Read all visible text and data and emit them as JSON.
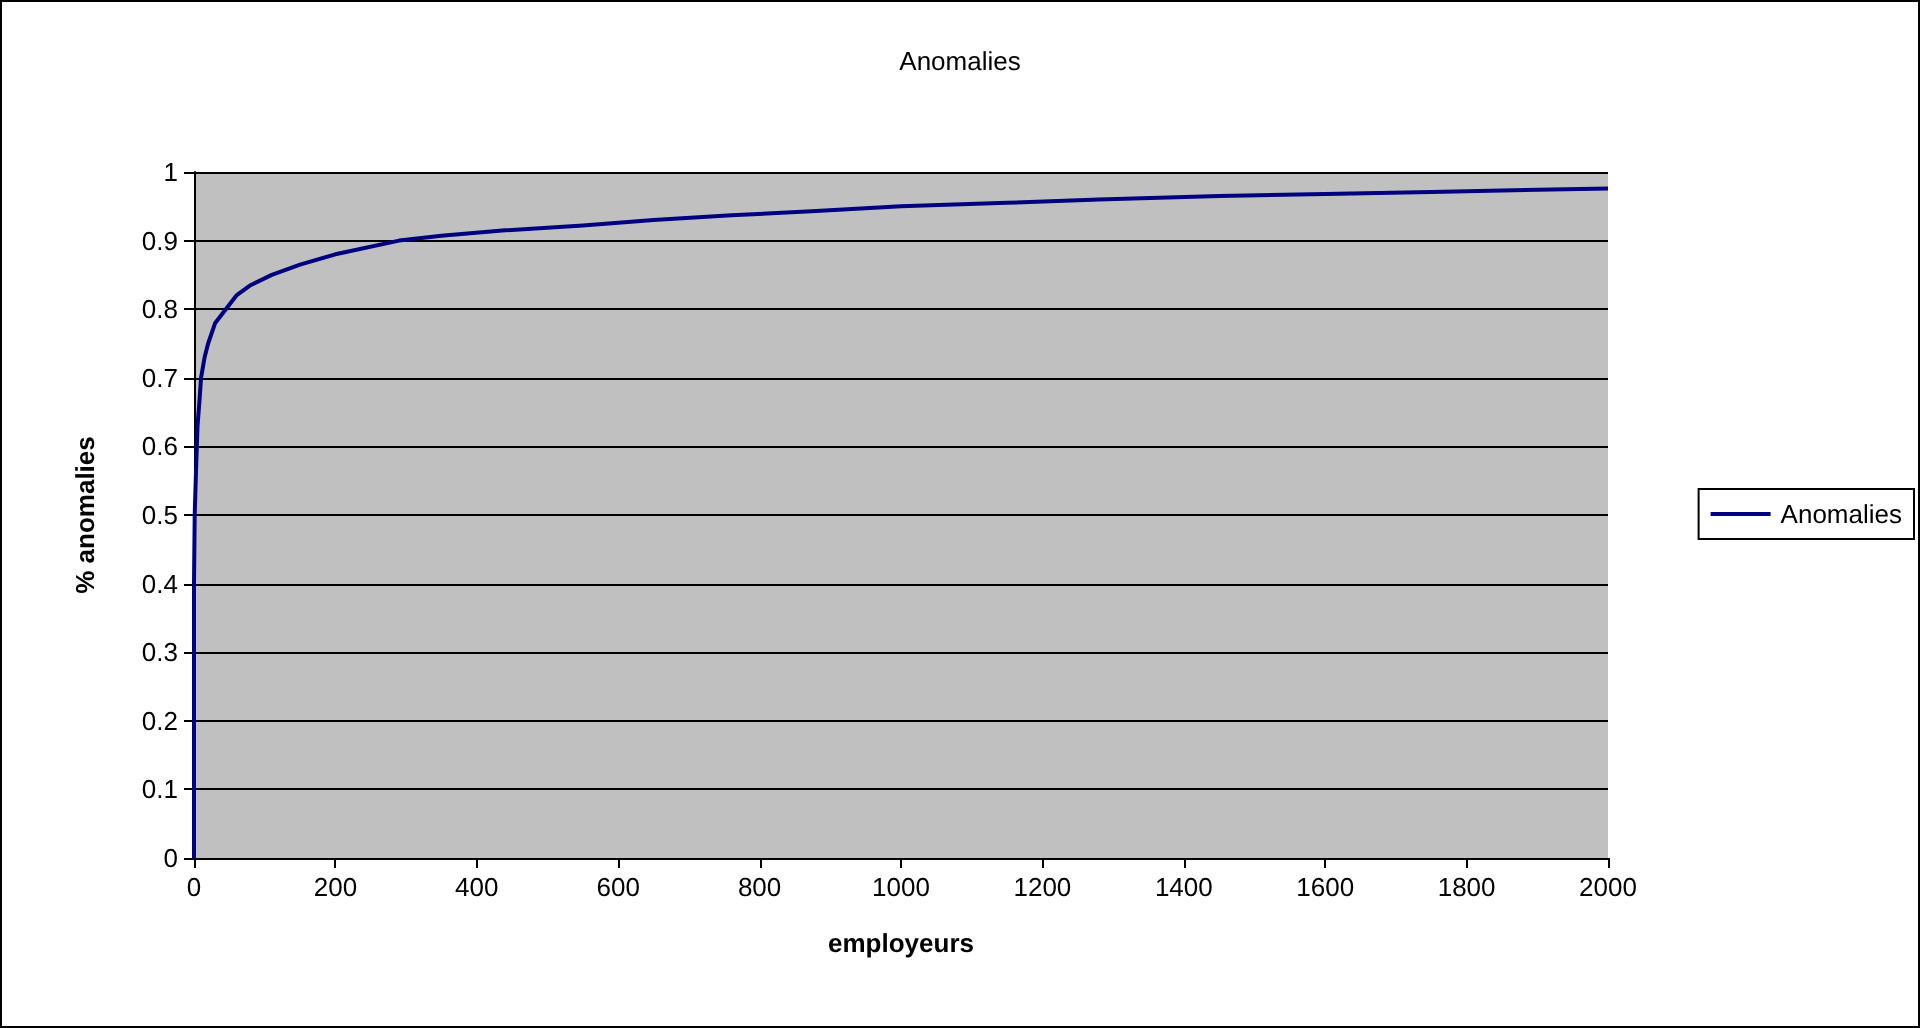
{
  "chart_data": {
    "type": "line",
    "title": "Anomalies",
    "xlabel": "employeurs",
    "ylabel": "% anomalies",
    "series": [
      {
        "name": "Anomalies",
        "color": "#000080",
        "x": [
          0,
          0,
          1,
          3,
          5,
          8,
          10,
          15,
          20,
          30,
          45,
          60,
          80,
          110,
          150,
          200,
          290,
          350,
          440,
          550,
          650,
          760,
          880,
          1000,
          1150,
          1280,
          1450,
          1600,
          1750,
          1850,
          2000
        ],
        "values": [
          0,
          0.4,
          0.5,
          0.57,
          0.63,
          0.67,
          0.7,
          0.73,
          0.75,
          0.78,
          0.8,
          0.82,
          0.835,
          0.85,
          0.865,
          0.88,
          0.9,
          0.907,
          0.915,
          0.922,
          0.93,
          0.937,
          0.943,
          0.95,
          0.955,
          0.96,
          0.965,
          0.968,
          0.971,
          0.973,
          0.976
        ]
      }
    ],
    "xlim": [
      0,
      2000
    ],
    "xticks": [
      0,
      200,
      400,
      600,
      800,
      1000,
      1200,
      1400,
      1600,
      1800,
      2000
    ],
    "ylim": [
      0,
      1
    ],
    "yticks": [
      0,
      0.1,
      0.2,
      0.3,
      0.4,
      0.5,
      0.6,
      0.7,
      0.8,
      0.9,
      1
    ],
    "grid": "y",
    "legend": "right",
    "marker": "none",
    "line_style": "solid"
  }
}
